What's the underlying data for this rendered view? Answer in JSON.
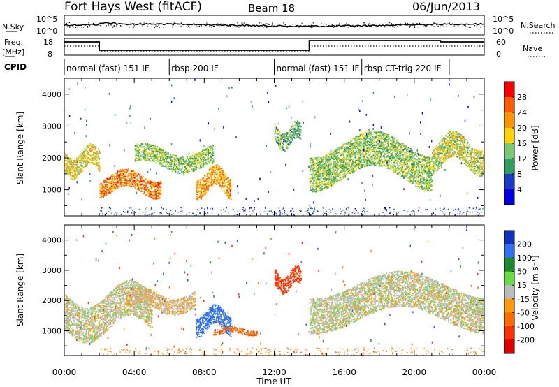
{
  "header": {
    "station": "Fort Hays West (fitACF)",
    "beam": "Beam 18",
    "date": "06/Jun/2013"
  },
  "sky_panel": {
    "left_label": "N.Sky",
    "right_label": "N.Search",
    "left_ticks": [
      "10^5",
      "10^0"
    ],
    "right_ticks": [
      "10^5",
      "10^0"
    ]
  },
  "freq_panel": {
    "left_label_1": "Freq.",
    "left_label_2": "[MHz]",
    "right_label": "Nave",
    "left_ticks": [
      "18",
      "8"
    ],
    "right_ticks": [
      "60",
      "0"
    ]
  },
  "cpid": {
    "label": "CPID",
    "segments": [
      {
        "start": 0.0,
        "end": 6.0,
        "label": "normal (fast) 151 IF"
      },
      {
        "start": 6.0,
        "end": 12.0,
        "label": "rbsp 200 IF"
      },
      {
        "start": 12.0,
        "end": 17.0,
        "label": "normal (fast) 151 IF"
      },
      {
        "start": 17.0,
        "end": 22.0,
        "label": "rbsp CT-trig 220 IF"
      }
    ]
  },
  "power_colorbar": {
    "title": "Power [dB]",
    "ticks": [
      "28",
      "24",
      "20",
      "16",
      "12",
      "8",
      "4"
    ],
    "colors": [
      "#ff0000",
      "#ff5a00",
      "#ff9600",
      "#ffd200",
      "#78c878",
      "#2f9f5f",
      "#1a3ac8",
      "#0000e6"
    ]
  },
  "velocity_colorbar": {
    "title": "Velocity [m s⁻¹]",
    "ticks": [
      "200",
      "100",
      "50",
      "15",
      "-15",
      "-50",
      "-100",
      "-200"
    ],
    "colors": [
      "#1030c0",
      "#2f6ff0",
      "#1a8a2a",
      "#66dd44",
      "#bcbcbc",
      "#ff9a00",
      "#ff6a00",
      "#ff3000",
      "#e00000"
    ]
  },
  "x_axis": {
    "label": "Time UT",
    "ticks": [
      "00:00",
      "04:00",
      "08:00",
      "12:00",
      "16:00",
      "20:00",
      "00:00"
    ]
  },
  "y_axis": {
    "label": "Slant Range [km]",
    "ticks": [
      "4000",
      "3000",
      "2000",
      "1000"
    ]
  },
  "chart_data": [
    {
      "type": "heatmap",
      "panel": "power",
      "title": "Beam 18",
      "xlabel": "Time UT",
      "ylabel": "Slant Range [km]",
      "colorbar": "Power [dB]",
      "xlim": [
        0,
        24
      ],
      "ylim": [
        180,
        4500
      ],
      "echo_regions": [
        {
          "t0": 0.0,
          "t1": 2.0,
          "r0": 1550,
          "r1": 2250,
          "level": 18
        },
        {
          "t0": 2.0,
          "t1": 5.5,
          "r0": 900,
          "r1": 1500,
          "level": 24
        },
        {
          "t0": 4.0,
          "t1": 8.5,
          "r0": 1700,
          "r1": 2300,
          "level": 14
        },
        {
          "t0": 7.5,
          "t1": 9.5,
          "r0": 900,
          "r1": 1600,
          "level": 22
        },
        {
          "t0": 12.0,
          "t1": 13.5,
          "r0": 2400,
          "r1": 3000,
          "level": 12
        },
        {
          "t0": 14.0,
          "t1": 21.0,
          "r0": 1300,
          "r1": 2500,
          "level": 14
        },
        {
          "t0": 21.0,
          "t1": 24.0,
          "r0": 1700,
          "r1": 2600,
          "level": 16
        }
      ]
    },
    {
      "type": "heatmap",
      "panel": "velocity",
      "xlabel": "Time UT",
      "ylabel": "Slant Range [km]",
      "colorbar": "Velocity [m s⁻¹]",
      "xlim": [
        0,
        24
      ],
      "ylim": [
        180,
        4500
      ],
      "echo_regions": [
        {
          "t0": 0.0,
          "t1": 5.0,
          "r0": 1000,
          "r1": 2300,
          "velocity": 0
        },
        {
          "t0": 3.5,
          "t1": 7.5,
          "r0": 1700,
          "r1": 2300,
          "velocity": -10
        },
        {
          "t0": 7.5,
          "t1": 9.5,
          "r0": 1000,
          "r1": 1700,
          "velocity": 150
        },
        {
          "t0": 8.5,
          "t1": 11.0,
          "r0": 900,
          "r1": 1100,
          "velocity": -80
        },
        {
          "t0": 12.0,
          "t1": 13.5,
          "r0": 2400,
          "r1": 3000,
          "velocity": -120
        },
        {
          "t0": 14.0,
          "t1": 24.0,
          "r0": 1300,
          "r1": 2600,
          "velocity": 0
        }
      ]
    }
  ]
}
